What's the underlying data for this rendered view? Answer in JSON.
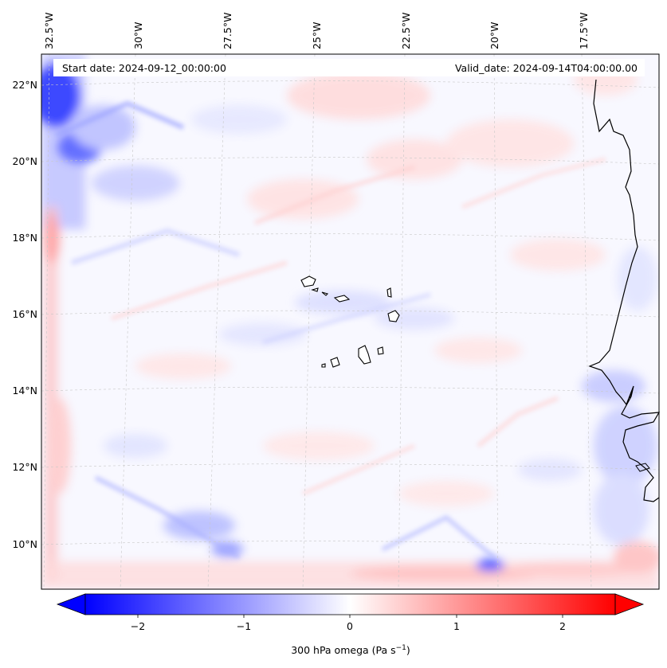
{
  "header": {
    "start_date": "Start date: 2024-09-12_00:00:00",
    "valid_date": "Valid_date: 2024-09-14T04:00:00.00"
  },
  "map": {
    "lon_labels": [
      "32.5°W",
      "30°W",
      "27.5°W",
      "25°W",
      "22.5°W",
      "20°W",
      "17.5°W"
    ],
    "lat_labels": [
      "22°N",
      "20°N",
      "18°N",
      "16°N",
      "14°N",
      "12°N",
      "10°N"
    ],
    "field": "300 hPa omega",
    "colormap": "bwr"
  },
  "colorbar": {
    "ticks": [
      "−2",
      "−1",
      "0",
      "1",
      "2"
    ],
    "label_main": "300 hPa omega (Pa s",
    "label_sup": "−1",
    "label_end": ")",
    "vmin": -2.5,
    "vmax": 2.5,
    "colors": {
      "low": "#0000ff",
      "mid": "#ffffff",
      "high": "#ff0000"
    }
  }
}
